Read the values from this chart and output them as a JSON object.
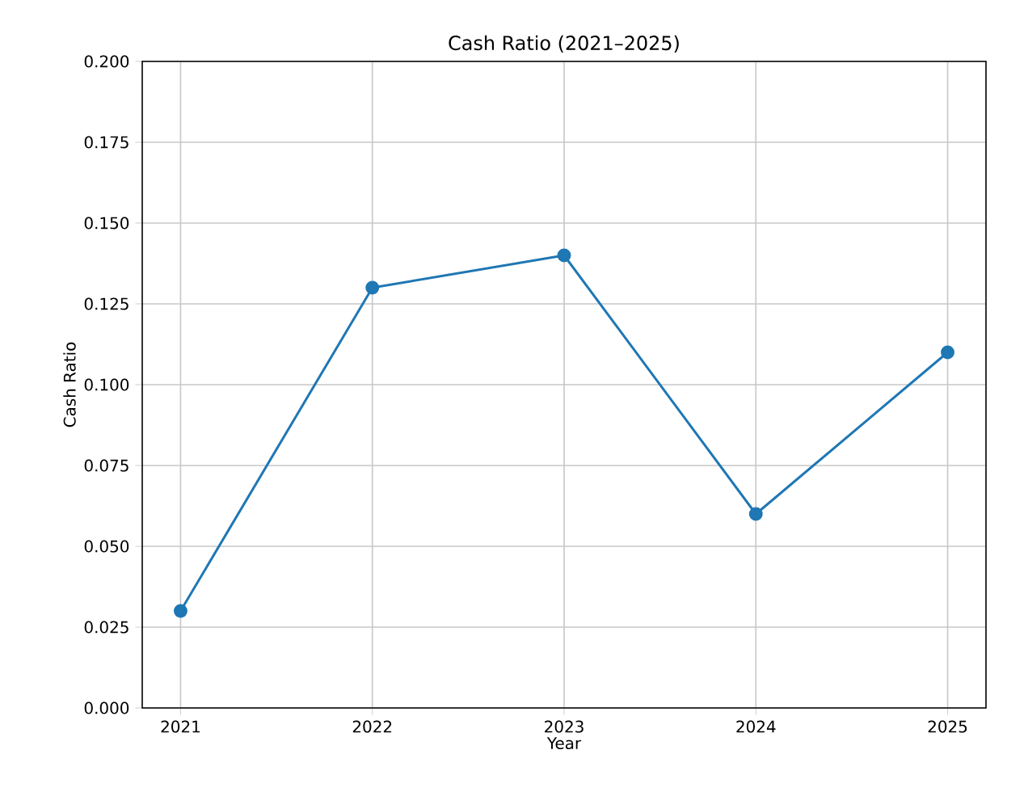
{
  "chart_data": {
    "type": "line",
    "title": "Cash Ratio (2021–2025)",
    "xlabel": "Year",
    "ylabel": "Cash Ratio",
    "x": [
      2021,
      2022,
      2023,
      2024,
      2025
    ],
    "series": [
      {
        "color": "#1f77b4",
        "values": [
          0.03,
          0.13,
          0.14,
          0.06,
          0.11
        ]
      }
    ],
    "xlim": [
      2020.8,
      2025.2
    ],
    "ylim": [
      0,
      0.2
    ],
    "xticks": [
      2021,
      2022,
      2023,
      2024,
      2025
    ],
    "yticks": [
      {
        "value": 0,
        "label": "0.000"
      },
      {
        "value": 0.025,
        "label": "0.025"
      },
      {
        "value": 0.05,
        "label": "0.050"
      },
      {
        "value": 0.075,
        "label": "0.075"
      },
      {
        "value": 0.1,
        "label": "0.100"
      },
      {
        "value": 0.125,
        "label": "0.125"
      },
      {
        "value": 0.15,
        "label": "0.150"
      },
      {
        "value": 0.175,
        "label": "0.175"
      },
      {
        "value": 0.2,
        "label": "0.200"
      }
    ],
    "grid": true,
    "marker": "circle",
    "line_style": "solid"
  }
}
